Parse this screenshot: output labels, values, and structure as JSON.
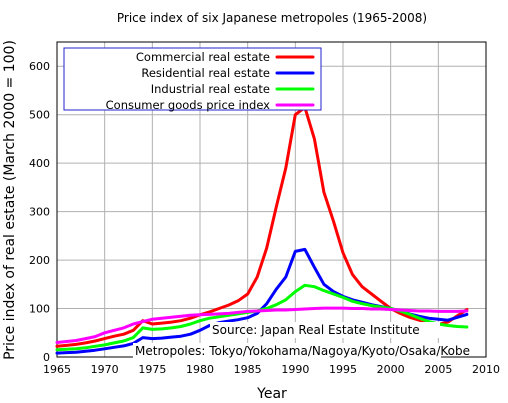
{
  "chart_data": {
    "type": "line",
    "title": "Price index of six Japanese metropoles (1965-2008)",
    "xlabel": "Year",
    "ylabel": "Price index of real estate (March 2000 = 100)",
    "xlim": [
      1965,
      2010
    ],
    "ylim": [
      0,
      650
    ],
    "xticks": [
      1965,
      1970,
      1975,
      1980,
      1985,
      1990,
      1995,
      2000,
      2005,
      2010
    ],
    "yticks": [
      0,
      100,
      200,
      300,
      400,
      500,
      600
    ],
    "grid": true,
    "legend_position": "top-left",
    "annotations": [
      "Source: Japan Real Estate Institute",
      "Metropoles: Tokyo/Yokohama/Nagoya/Kyoto/Osaka/Kobe"
    ],
    "series": [
      {
        "name": "Commercial real estate",
        "color": "#ff0000",
        "x": [
          1965,
          1966,
          1967,
          1968,
          1969,
          1970,
          1971,
          1972,
          1973,
          1974,
          1975,
          1976,
          1977,
          1978,
          1979,
          1980,
          1981,
          1982,
          1983,
          1984,
          1985,
          1986,
          1987,
          1988,
          1989,
          1990,
          1991,
          1992,
          1993,
          1994,
          1995,
          1996,
          1997,
          1998,
          1999,
          2000,
          2001,
          2002,
          2003,
          2004,
          2005,
          2006,
          2007,
          2008
        ],
        "values": [
          22,
          24,
          26,
          29,
          33,
          38,
          43,
          47,
          55,
          75,
          68,
          70,
          72,
          75,
          80,
          87,
          93,
          100,
          107,
          116,
          130,
          165,
          225,
          310,
          390,
          500,
          515,
          450,
          340,
          280,
          215,
          170,
          145,
          130,
          115,
          100,
          90,
          82,
          76,
          70,
          67,
          72,
          85,
          98
        ]
      },
      {
        "name": "Residential real estate",
        "color": "#0000ff",
        "x": [
          1965,
          1966,
          1967,
          1968,
          1969,
          1970,
          1971,
          1972,
          1973,
          1974,
          1975,
          1976,
          1977,
          1978,
          1979,
          1980,
          1981,
          1982,
          1983,
          1984,
          1985,
          1986,
          1987,
          1988,
          1989,
          1990,
          1991,
          1992,
          1993,
          1994,
          1995,
          1996,
          1997,
          1998,
          1999,
          2000,
          2001,
          2002,
          2003,
          2004,
          2005,
          2006,
          2007,
          2008
        ],
        "values": [
          8,
          9,
          10,
          12,
          14,
          17,
          20,
          23,
          28,
          40,
          38,
          39,
          41,
          43,
          47,
          55,
          65,
          71,
          74,
          77,
          81,
          90,
          110,
          140,
          165,
          218,
          222,
          185,
          150,
          135,
          125,
          118,
          113,
          108,
          104,
          100,
          95,
          89,
          84,
          80,
          78,
          76,
          82,
          88
        ]
      },
      {
        "name": "Industrial real estate",
        "color": "#00ff00",
        "x": [
          1965,
          1966,
          1967,
          1968,
          1969,
          1970,
          1971,
          1972,
          1973,
          1974,
          1975,
          1976,
          1977,
          1978,
          1979,
          1980,
          1981,
          1982,
          1983,
          1984,
          1985,
          1986,
          1987,
          1988,
          1989,
          1990,
          1991,
          1992,
          1993,
          1994,
          1995,
          1996,
          1997,
          1998,
          1999,
          2000,
          2001,
          2002,
          2003,
          2004,
          2005,
          2006,
          2007,
          2008
        ],
        "values": [
          15,
          16,
          17,
          19,
          22,
          25,
          29,
          33,
          40,
          60,
          57,
          58,
          60,
          63,
          68,
          75,
          80,
          83,
          86,
          89,
          92,
          95,
          100,
          108,
          118,
          135,
          148,
          145,
          137,
          130,
          123,
          115,
          110,
          106,
          103,
          100,
          95,
          88,
          80,
          73,
          68,
          65,
          63,
          62
        ]
      },
      {
        "name": "Consumer goods price index",
        "color": "#ff00ff",
        "x": [
          1965,
          1966,
          1967,
          1968,
          1969,
          1970,
          1971,
          1972,
          1973,
          1974,
          1975,
          1976,
          1977,
          1978,
          1979,
          1980,
          1981,
          1982,
          1983,
          1984,
          1985,
          1986,
          1987,
          1988,
          1989,
          1990,
          1991,
          1992,
          1993,
          1994,
          1995,
          1996,
          1997,
          1998,
          1999,
          2000,
          2001,
          2002,
          2003,
          2004,
          2005,
          2006,
          2007,
          2008
        ],
        "values": [
          30,
          32,
          34,
          38,
          42,
          50,
          55,
          60,
          68,
          73,
          78,
          80,
          82,
          84,
          86,
          87,
          88,
          89,
          90,
          92,
          94,
          95,
          96,
          97,
          97,
          98,
          99,
          100,
          101,
          101,
          101,
          100,
          100,
          99,
          99,
          98,
          97,
          96,
          95,
          95,
          94,
          94,
          94,
          95
        ]
      }
    ]
  }
}
